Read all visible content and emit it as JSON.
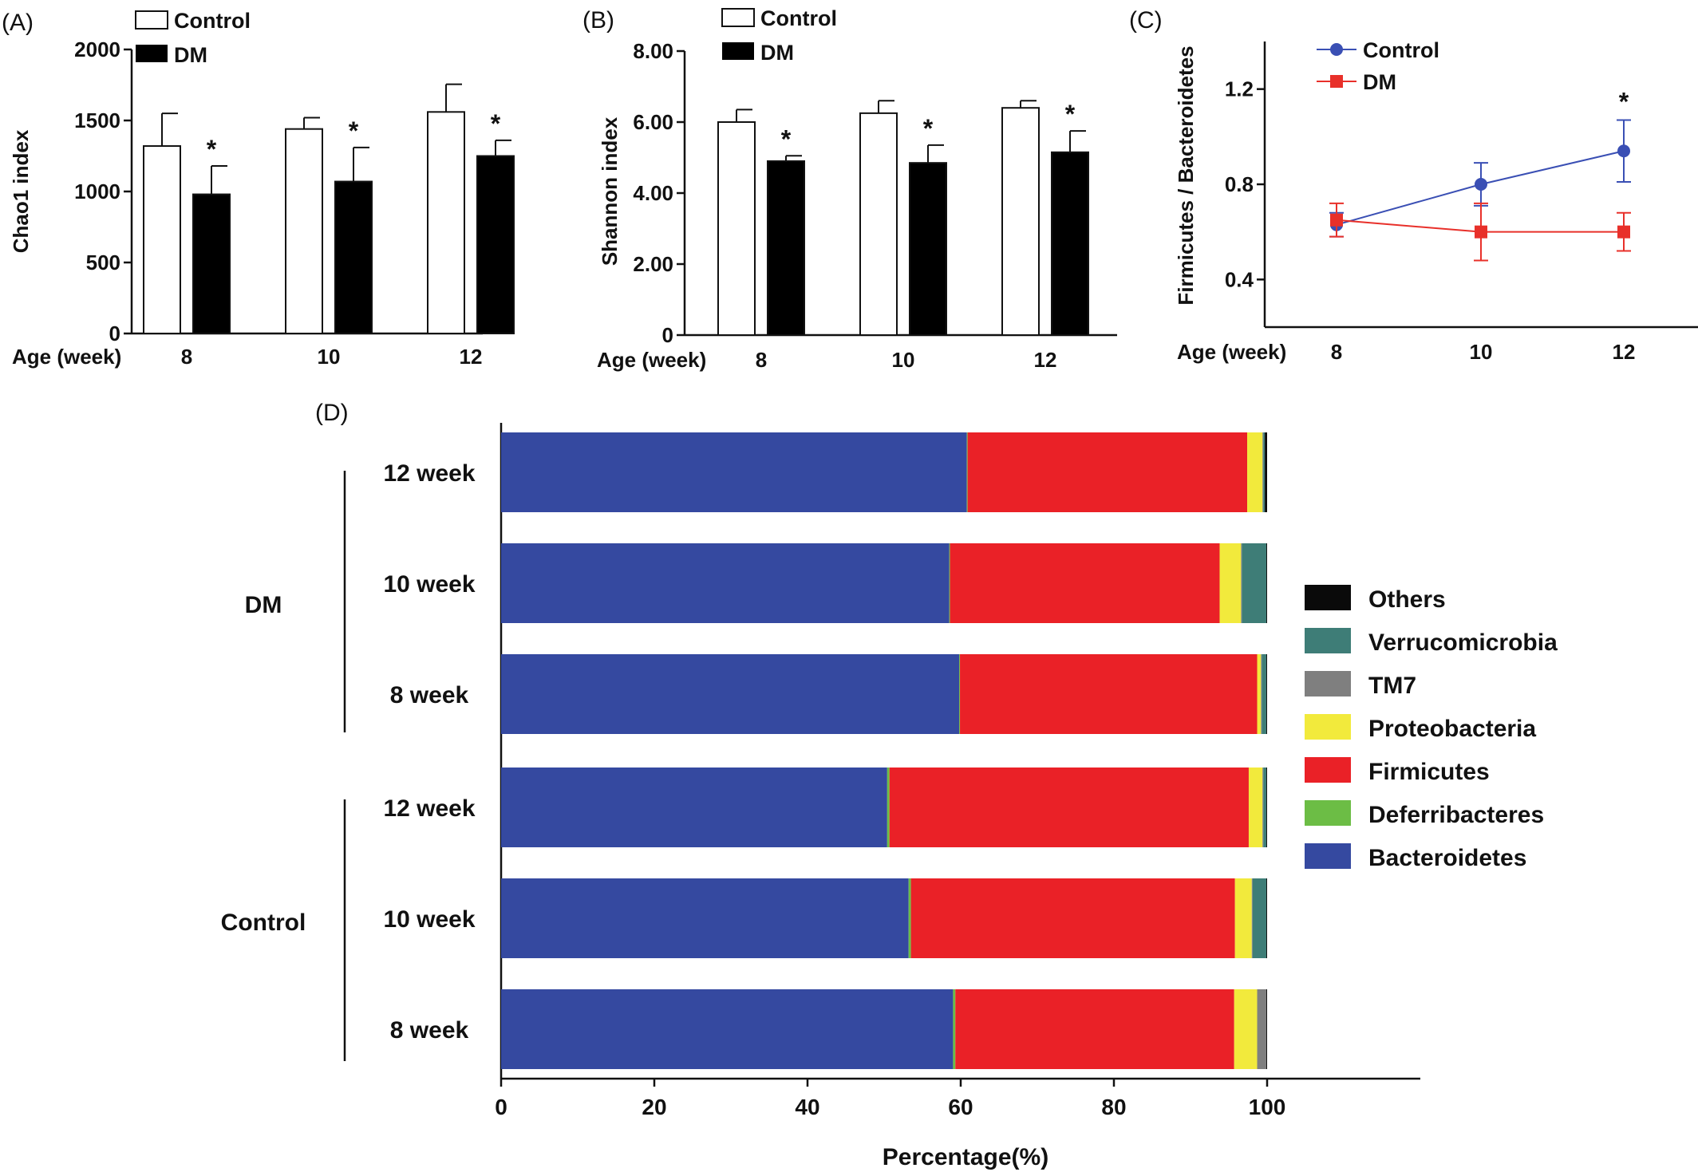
{
  "chart_data": [
    {
      "panel": "(A)",
      "type": "bar",
      "ylabel": "Chao1 index",
      "xlabel": "Age (week)",
      "categories": [
        "8",
        "10",
        "12"
      ],
      "ylim": [
        0,
        2000
      ],
      "yticks": [
        "0",
        "500",
        "1000",
        "1500",
        "2000"
      ],
      "legend": [
        "Control",
        "DM"
      ],
      "series": [
        {
          "name": "Control",
          "values": [
            1320,
            1440,
            1560
          ],
          "errors": [
            230,
            80,
            195
          ]
        },
        {
          "name": "DM",
          "values": [
            980,
            1070,
            1250
          ],
          "errors": [
            200,
            240,
            110
          ]
        }
      ],
      "significance": [
        "*",
        "*",
        "*"
      ]
    },
    {
      "panel": "(B)",
      "type": "bar",
      "ylabel": "Shannon index",
      "xlabel": "Age (week)",
      "categories": [
        "8",
        "10",
        "12"
      ],
      "ylim": [
        0,
        8
      ],
      "yticks": [
        "0",
        "2.00",
        "4.00",
        "6.00",
        "8.00"
      ],
      "legend": [
        "Control",
        "DM"
      ],
      "series": [
        {
          "name": "Control",
          "values": [
            6.0,
            6.25,
            6.4
          ],
          "errors": [
            0.35,
            0.35,
            0.2
          ]
        },
        {
          "name": "DM",
          "values": [
            4.9,
            4.85,
            5.15
          ],
          "errors": [
            0.15,
            0.5,
            0.6
          ]
        }
      ],
      "significance": [
        "*",
        "*",
        "*"
      ]
    },
    {
      "panel": "(C)",
      "type": "line",
      "ylabel": "Firmicutes / Bacteroidetes",
      "xlabel": "Age (week)",
      "categories": [
        "8",
        "10",
        "12"
      ],
      "ylim": [
        0.2,
        1.4
      ],
      "yticks": [
        "0.4",
        "0.8",
        "1.2"
      ],
      "series": [
        {
          "name": "Control",
          "values": [
            0.63,
            0.8,
            0.94
          ],
          "errors": [
            0.05,
            0.09,
            0.13
          ],
          "color": "#3a4fb4"
        },
        {
          "name": "DM",
          "values": [
            0.65,
            0.6,
            0.6
          ],
          "errors": [
            0.07,
            0.12,
            0.08
          ],
          "color": "#e8302a"
        }
      ],
      "significance": [
        "",
        "",
        "*"
      ]
    },
    {
      "panel": "(D)",
      "type": "bar",
      "orientation": "horizontal-stacked",
      "xlabel": "Percentage(%)",
      "xlim": [
        0,
        120
      ],
      "xticks": [
        "0",
        "20",
        "40",
        "60",
        "80",
        "100"
      ],
      "groups": [
        {
          "name": "DM",
          "rows": [
            "12 week",
            "10 week",
            "8 week"
          ]
        },
        {
          "name": "Control",
          "rows": [
            "12 week",
            "10 week",
            "8 week"
          ]
        }
      ],
      "legend": [
        "Others",
        "Verrucomicrobia",
        "TM7",
        "Proteobacteria",
        "Firmicutes",
        "Deferribacteres",
        "Bacteroidetes"
      ],
      "series": [
        {
          "name": "Bacteroidetes",
          "color": "#3549a0",
          "values": [
            60.8,
            58.5,
            59.8,
            50.4,
            53.2,
            59.0
          ]
        },
        {
          "name": "Deferribacteres",
          "color": "#6cbd45",
          "values": [
            0.1,
            0.1,
            0.1,
            0.3,
            0.3,
            0.3
          ]
        },
        {
          "name": "Firmicutes",
          "color": "#ea2127",
          "values": [
            36.5,
            35.2,
            38.8,
            46.9,
            42.3,
            36.4
          ]
        },
        {
          "name": "Proteobacteria",
          "color": "#f2ea3c",
          "values": [
            2.0,
            2.8,
            0.5,
            1.8,
            2.2,
            3.0
          ]
        },
        {
          "name": "TM7",
          "color": "#7f7f7f",
          "values": [
            0.1,
            0.1,
            0.1,
            0.1,
            0.1,
            1.2
          ]
        },
        {
          "name": "Verrucomicrobia",
          "color": "#3e7d77",
          "values": [
            0.2,
            3.2,
            0.6,
            0.4,
            1.8,
            0.0
          ]
        },
        {
          "name": "Others",
          "color": "#0a0a0a",
          "values": [
            0.3,
            0.1,
            0.1,
            0.1,
            0.1,
            0.1
          ]
        }
      ]
    }
  ]
}
